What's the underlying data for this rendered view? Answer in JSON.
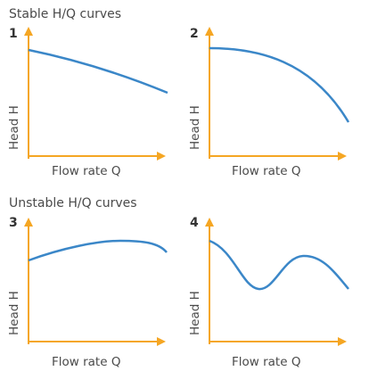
{
  "sections": [
    {
      "title": "Stable H/Q curves"
    },
    {
      "title": "Unstable H/Q curves"
    }
  ],
  "panels": [
    {
      "number": "1",
      "x_label": "Flow rate Q",
      "y_label": "Head H",
      "curve": "decreasing-gentle"
    },
    {
      "number": "2",
      "x_label": "Flow rate Q",
      "y_label": "Head H",
      "curve": "decreasing-steep"
    },
    {
      "number": "3",
      "x_label": "Flow rate Q",
      "y_label": "Head H",
      "curve": "rise-then-fall"
    },
    {
      "number": "4",
      "x_label": "Flow rate Q",
      "y_label": "Head H",
      "curve": "dip-then-peak"
    }
  ],
  "colors": {
    "axis": "#F5A623",
    "curve": "#3B87C8",
    "text": "#4a4a4a"
  }
}
